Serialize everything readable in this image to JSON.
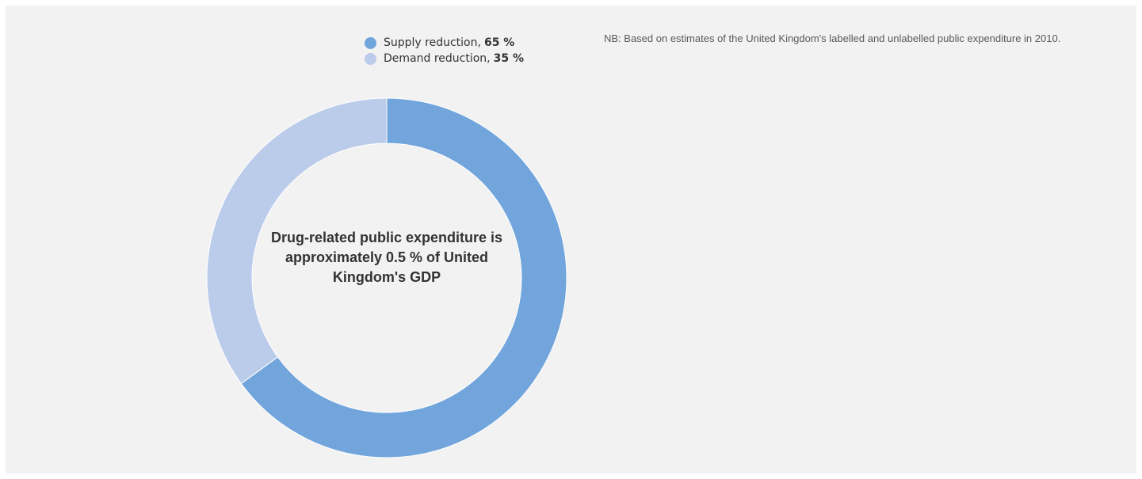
{
  "note": "NB: Based on estimates of the United Kingdom's labelled and unlabelled public expenditure in 2010.",
  "center_label": "Drug-related public expenditure is approximately 0.5 % of United Kingdom's GDP",
  "chart_data": {
    "type": "pie",
    "donut": true,
    "categories": [
      "Supply reduction",
      "Demand reduction"
    ],
    "values": [
      65,
      35
    ],
    "unit": "%",
    "colors": [
      "#71a5db",
      "#bbcbea"
    ],
    "legend_position": "top",
    "legend": [
      {
        "label": "Supply reduction,",
        "value": "65 %",
        "color": "#71a5db"
      },
      {
        "label": "Demand reduction,",
        "value": "35 %",
        "color": "#bbcbea"
      }
    ]
  }
}
